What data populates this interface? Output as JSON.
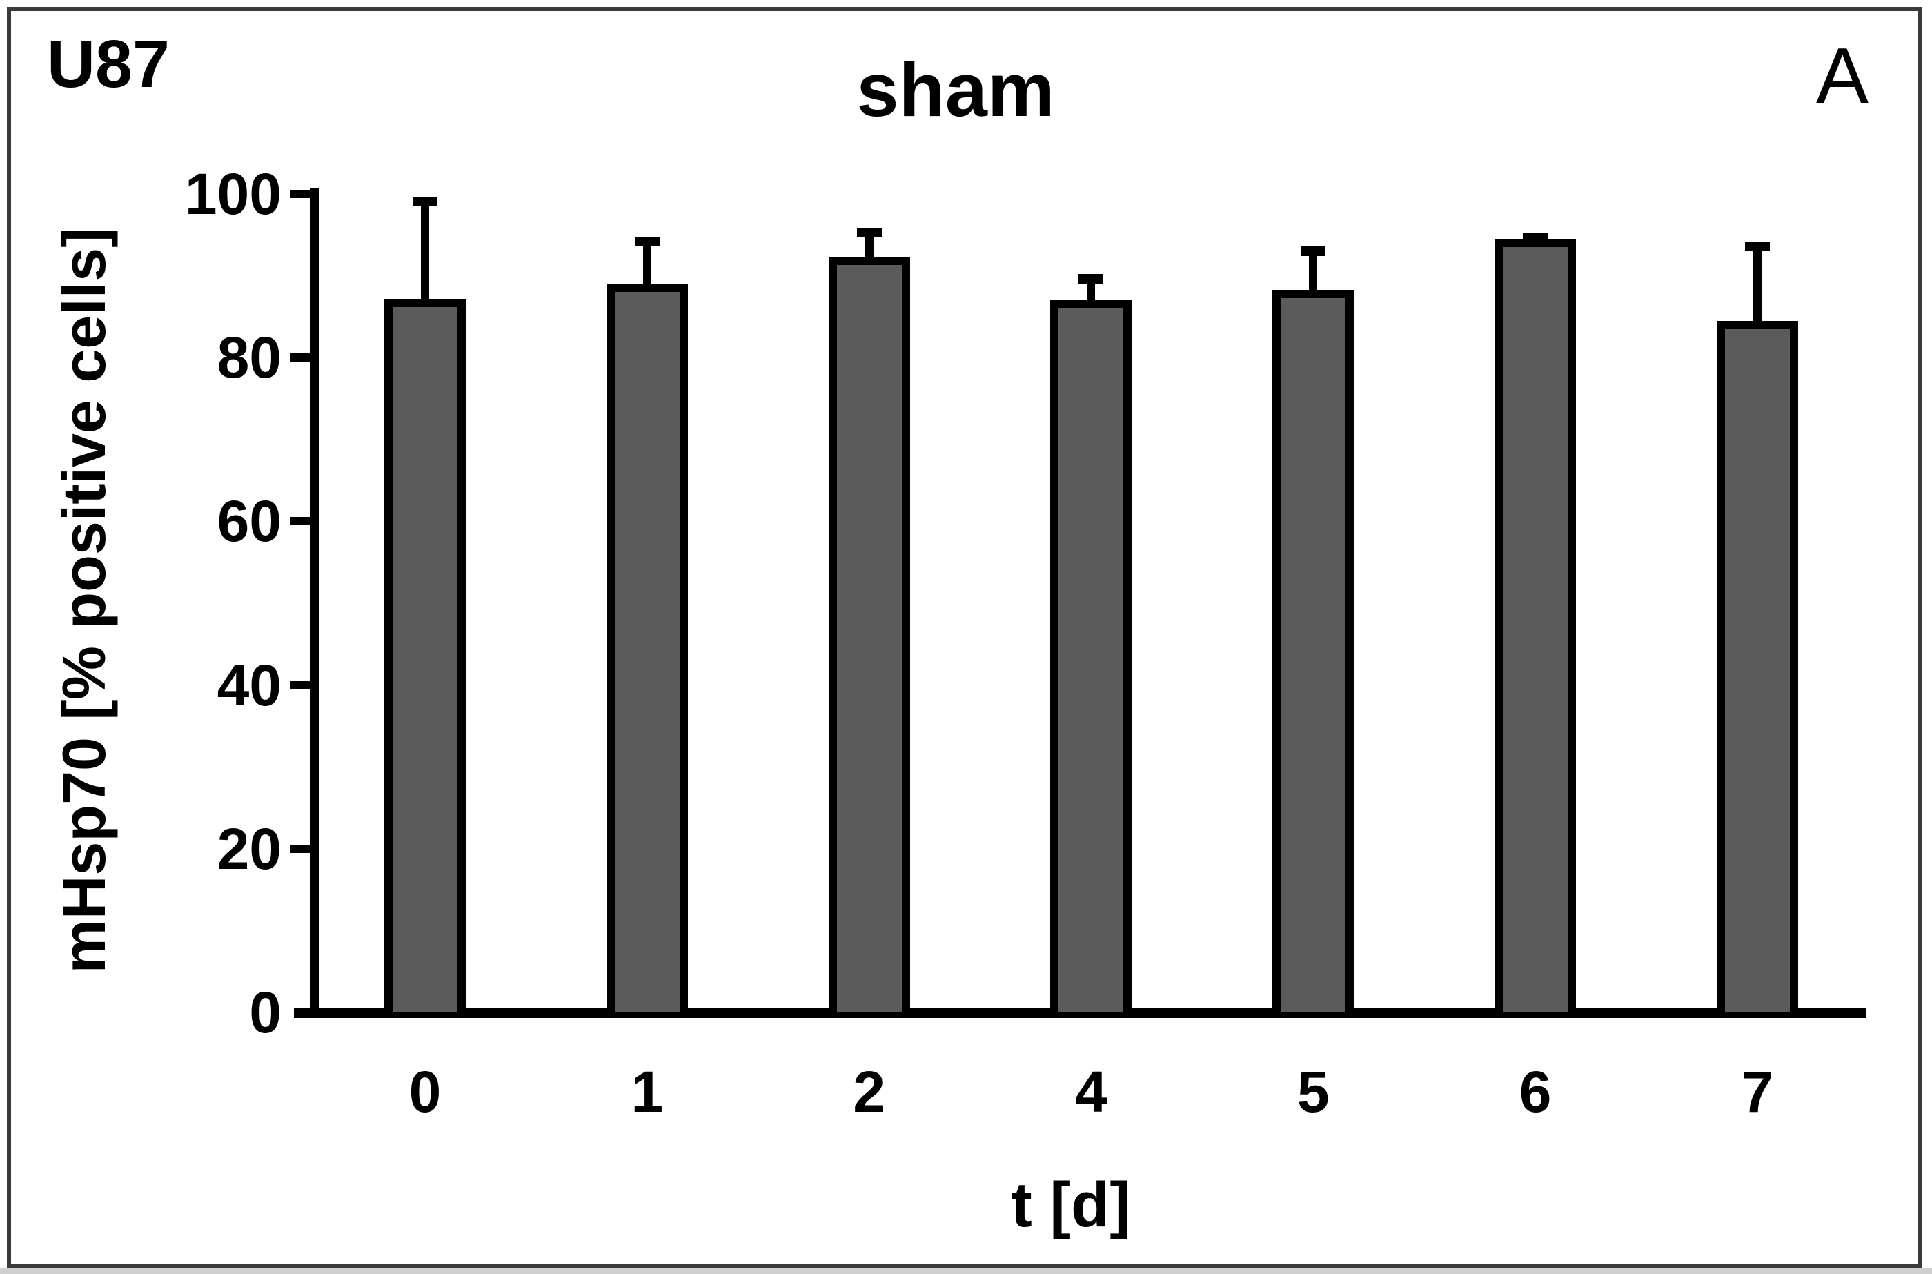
{
  "figure": {
    "cell_line_label": "U87",
    "panel_label": "A"
  },
  "chart_data": {
    "type": "bar",
    "title": "sham",
    "xlabel": "t [d]",
    "ylabel": "mHsp70 [% positive cells]",
    "categories": [
      "0",
      "1",
      "2",
      "4",
      "5",
      "6",
      "7"
    ],
    "values": [
      87.2,
      89.0,
      92.3,
      87.0,
      88.3,
      94.5,
      84.5
    ],
    "errors_plus": [
      12.5,
      5.8,
      3.6,
      3.2,
      5.3,
      0.8,
      9.7
    ],
    "ylim": [
      0,
      100
    ],
    "yticks": [
      0,
      20,
      40,
      60,
      80,
      100
    ],
    "grid": false,
    "legend": null,
    "bar_color": "#5b5b5b",
    "bar_border_color": "#000000",
    "error_color": "#000000",
    "axis_color": "#000000",
    "frame_color": "#3a3a3a"
  }
}
